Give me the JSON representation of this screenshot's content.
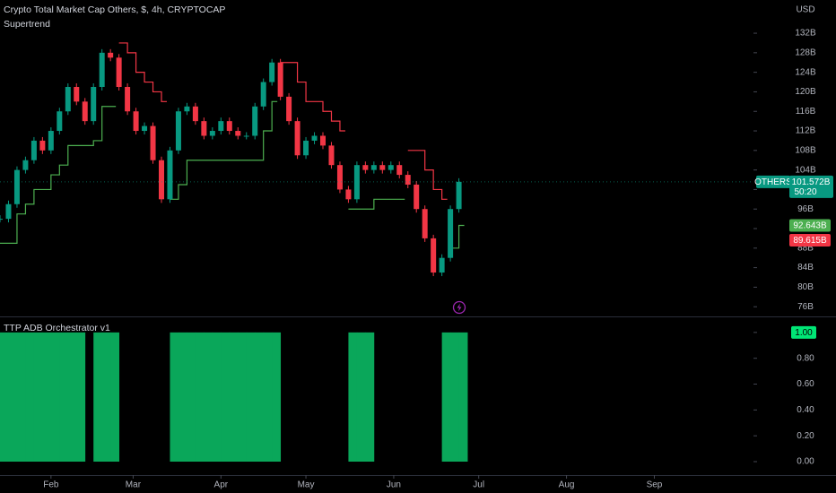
{
  "chart_data": [
    {
      "type": "candlestick",
      "title": "Crypto Total Market Cap Others, $, 4h, CRYPTOCAP",
      "indicator": "Supertrend",
      "currency": "USD",
      "x": [
        14,
        17,
        20,
        23,
        26,
        29,
        32,
        35,
        38,
        41,
        44,
        47,
        50,
        53,
        56,
        59,
        62,
        65,
        68,
        71,
        74,
        77,
        80,
        83,
        86,
        89,
        92,
        95,
        98,
        101,
        104,
        107,
        110,
        113,
        116,
        119,
        122,
        125,
        128,
        131,
        134,
        137,
        140,
        143,
        146,
        149,
        152,
        155,
        158,
        161,
        164,
        167,
        170,
        173,
        176
      ],
      "series": [
        {
          "name": "OTHERS",
          "color": "#089981",
          "values": [
            94,
            97,
            104,
            106,
            110,
            108,
            112,
            116,
            121,
            118,
            114,
            121,
            128,
            127,
            121,
            116,
            112,
            113,
            106,
            98,
            108,
            116,
            117,
            114,
            111,
            112,
            114,
            112,
            111,
            111,
            117,
            122,
            126,
            119,
            114,
            107,
            110,
            111,
            109,
            105,
            100,
            98,
            105,
            104,
            105,
            104,
            105,
            103,
            101,
            96,
            90,
            83,
            86,
            96,
            101.572
          ]
        },
        {
          "color": "#4caf50",
          "values": [
            89,
            89,
            95,
            97,
            100,
            100,
            103,
            105,
            109,
            109,
            109,
            110,
            117,
            117,
            null,
            null,
            null,
            null,
            null,
            null,
            98,
            101,
            106,
            106,
            106,
            106,
            106,
            106,
            106,
            106,
            106,
            112,
            118,
            null,
            null,
            null,
            null,
            null,
            null,
            null,
            null,
            96,
            96,
            96,
            98,
            98,
            98,
            98,
            null,
            null,
            null,
            null,
            null,
            88,
            92.643
          ]
        },
        {
          "color": "#f23645",
          "values": [
            null,
            null,
            null,
            null,
            null,
            null,
            null,
            null,
            null,
            null,
            null,
            null,
            null,
            null,
            130,
            128,
            124,
            122,
            120,
            118,
            null,
            null,
            null,
            null,
            null,
            null,
            null,
            null,
            null,
            null,
            null,
            null,
            null,
            126,
            126,
            122,
            118,
            118,
            116,
            114,
            112,
            null,
            null,
            null,
            null,
            null,
            null,
            null,
            108,
            108,
            104,
            100,
            98,
            null,
            null
          ]
        }
      ],
      "last_price": {
        "value": 101.572,
        "label": "101.572B"
      },
      "countdown": "50:20",
      "levels": [
        {
          "value": 92.643,
          "label": "92.643B",
          "color": "#4caf50"
        },
        {
          "value": 89.615,
          "label": "89.615B",
          "color": "#f23645"
        }
      ],
      "up_color": "#089981",
      "down_color": "#f23645",
      "xlim": [
        14,
        280
      ],
      "xticks": [
        {
          "value": 32,
          "label": "Feb"
        },
        {
          "value": 61,
          "label": "Mar"
        },
        {
          "value": 92,
          "label": "Apr"
        },
        {
          "value": 122,
          "label": "May"
        },
        {
          "value": 153,
          "label": "Jun"
        },
        {
          "value": 183,
          "label": "Jul"
        },
        {
          "value": 214,
          "label": "Aug"
        },
        {
          "value": 245,
          "label": "Sep"
        }
      ],
      "ylim": [
        74.2,
        138.8
      ],
      "yticks": [
        {
          "value": 76,
          "label": "76B"
        },
        {
          "value": 80,
          "label": "80B"
        },
        {
          "value": 84,
          "label": "84B"
        },
        {
          "value": 88,
          "label": "88B"
        },
        {
          "value": 92,
          "label": "92B"
        },
        {
          "value": 96,
          "label": "96B"
        },
        {
          "value": 100,
          "label": "100B"
        },
        {
          "value": 104,
          "label": "104B"
        },
        {
          "value": 108,
          "label": "108B"
        },
        {
          "value": 112,
          "label": "112B"
        },
        {
          "value": 116,
          "label": "116B"
        },
        {
          "value": 120,
          "label": "120B"
        },
        {
          "value": 124,
          "label": "124B"
        },
        {
          "value": 128,
          "label": "128B"
        },
        {
          "value": 132,
          "label": "132B"
        }
      ],
      "grid": false
    },
    {
      "type": "column",
      "title": "TTP ADB Orchestrator v1",
      "x": [
        14,
        17,
        20,
        23,
        26,
        29,
        32,
        35,
        38,
        41,
        44,
        47,
        50,
        53,
        56,
        59,
        62,
        65,
        68,
        71,
        74,
        77,
        80,
        83,
        86,
        89,
        92,
        95,
        98,
        101,
        104,
        107,
        110,
        113,
        116,
        119,
        122,
        125,
        128,
        131,
        134,
        137,
        140,
        143,
        146,
        149,
        152,
        155,
        158,
        161,
        164,
        167,
        170,
        173,
        176
      ],
      "values": [
        1,
        1,
        1,
        1,
        1,
        1,
        1,
        1,
        1,
        1,
        0,
        1,
        1,
        1,
        0,
        0,
        0,
        0,
        0,
        0,
        1,
        1,
        1,
        1,
        1,
        1,
        1,
        1,
        1,
        1,
        1,
        1,
        1,
        0,
        0,
        0,
        0,
        0,
        0,
        0,
        0,
        1,
        1,
        1,
        0,
        0,
        0,
        0,
        0,
        0,
        0,
        0,
        1,
        1,
        1
      ],
      "color": "#0aa75a",
      "last_value": {
        "value": 1,
        "label": "1.00"
      },
      "xlim": [
        14,
        280
      ],
      "ylim": [
        -0.104,
        1.11
      ],
      "yticks": [
        {
          "value": 0,
          "label": "0.00"
        },
        {
          "value": 0.2,
          "label": "0.20"
        },
        {
          "value": 0.4,
          "label": "0.40"
        },
        {
          "value": 0.6,
          "label": "0.60"
        },
        {
          "value": 0.8,
          "label": "0.80"
        },
        {
          "value": 1,
          "label": "1.00"
        }
      ],
      "grid": false
    }
  ]
}
